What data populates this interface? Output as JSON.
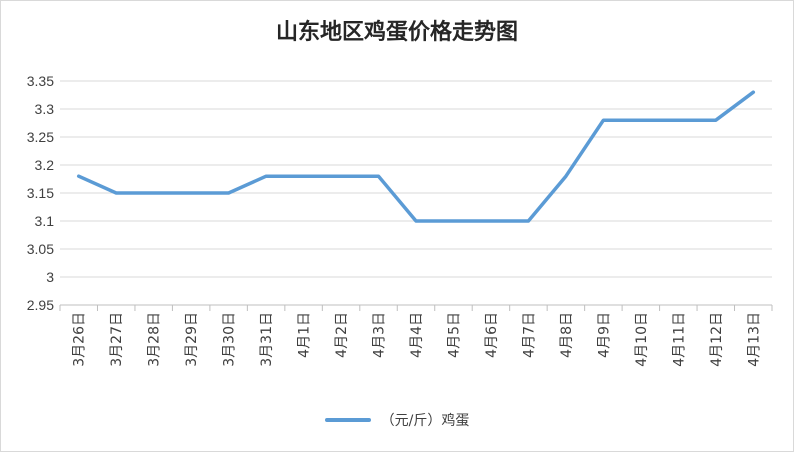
{
  "chart_data": {
    "type": "line",
    "title": "山东地区鸡蛋价格走势图",
    "categories": [
      "3月26日",
      "3月27日",
      "3月28日",
      "3月29日",
      "3月30日",
      "3月31日",
      "4月1日",
      "4月2日",
      "4月3日",
      "4月4日",
      "4月5日",
      "4月6日",
      "4月7日",
      "4月8日",
      "4月9日",
      "4月10日",
      "4月11日",
      "4月12日",
      "4月13日"
    ],
    "series": [
      {
        "name": "（元/斤）鸡蛋",
        "color": "#5b9bd5",
        "values": [
          3.18,
          3.15,
          3.15,
          3.15,
          3.15,
          3.18,
          3.18,
          3.18,
          3.18,
          3.1,
          3.1,
          3.1,
          3.1,
          3.18,
          3.28,
          3.28,
          3.28,
          3.28,
          3.33
        ]
      }
    ],
    "ylim": [
      2.95,
      3.35
    ],
    "yticks": [
      "3.35",
      "3.3",
      "3.25",
      "3.2",
      "3.15",
      "3.1",
      "3.05",
      "3",
      "2.95"
    ],
    "ytick_values": [
      3.35,
      3.3,
      3.25,
      3.2,
      3.15,
      3.1,
      3.05,
      3.0,
      2.95
    ],
    "grid": true,
    "legend_position": "bottom"
  }
}
